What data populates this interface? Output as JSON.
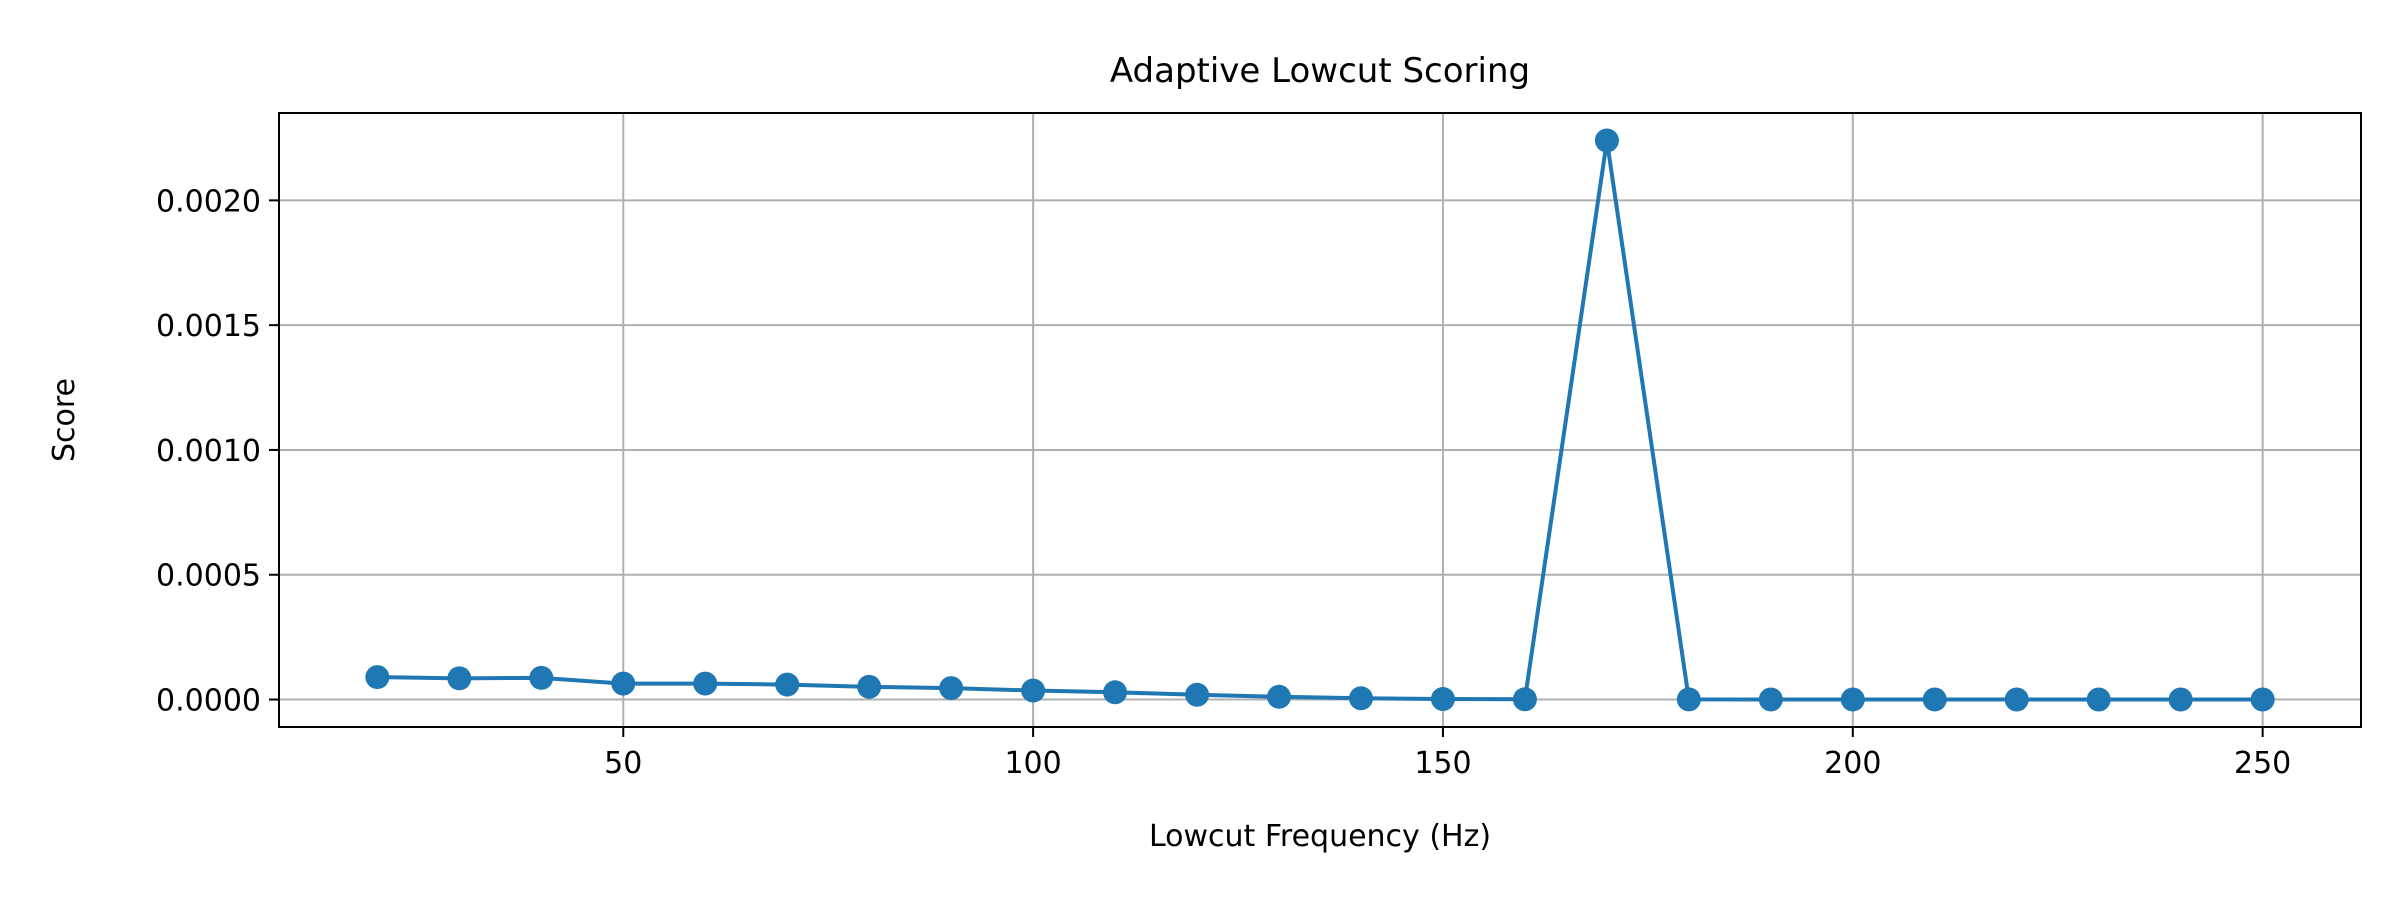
{
  "chart_data": {
    "type": "line",
    "title": "Adaptive Lowcut Scoring",
    "xlabel": "Lowcut Frequency (Hz)",
    "ylabel": "Score",
    "xlim": [
      8,
      262
    ],
    "ylim": [
      -0.00011,
      0.00235
    ],
    "xticks": [
      50,
      100,
      150,
      200,
      250
    ],
    "xtick_labels": [
      "50",
      "100",
      "150",
      "200",
      "250"
    ],
    "yticks": [
      0,
      0.0005,
      0.001,
      0.0015,
      0.002
    ],
    "ytick_labels": [
      "0.0000",
      "0.0005",
      "0.0010",
      "0.0015",
      "0.0020"
    ],
    "grid": true,
    "x": [
      20,
      30,
      40,
      50,
      60,
      70,
      80,
      90,
      100,
      110,
      120,
      130,
      140,
      150,
      160,
      170,
      180,
      190,
      200,
      210,
      220,
      230,
      240,
      250
    ],
    "series": [
      {
        "color": "#1f77b4",
        "marker": "circle",
        "values": [
          9e-05,
          8.5e-05,
          8.7e-05,
          6.4e-05,
          6.4e-05,
          6e-05,
          5.1e-05,
          4.6e-05,
          3.6e-05,
          2.9e-05,
          1.9e-05,
          1.1e-05,
          5e-06,
          2e-06,
          1e-06,
          0.00224,
          5e-07,
          4e-07,
          3e-07,
          3e-07,
          2e-07,
          2e-07,
          2e-07,
          1e-07
        ]
      }
    ]
  }
}
